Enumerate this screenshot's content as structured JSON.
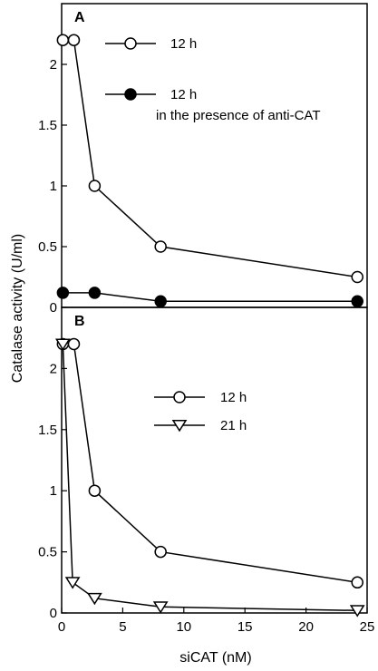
{
  "chart_data": [
    {
      "type": "line",
      "panel_label": "A",
      "xlim": [
        0,
        25
      ],
      "ylim": [
        0,
        2.5
      ],
      "yticks": [
        0,
        0.5,
        1,
        1.5,
        2
      ],
      "ytick_labels": [
        "0",
        "0.5",
        "1",
        "1.5",
        "2"
      ],
      "series": [
        {
          "name": "12 h",
          "marker": "open-circle",
          "x": [
            0.1,
            1.0,
            2.7,
            8.1,
            24.2
          ],
          "y": [
            2.2,
            2.2,
            1.0,
            0.5,
            0.25
          ]
        },
        {
          "name": "12 h",
          "name_line2": "in the presence of anti-CAT",
          "marker": "filled-circle",
          "x": [
            0.1,
            2.7,
            8.1,
            24.2
          ],
          "y": [
            0.12,
            0.12,
            0.05,
            0.05
          ]
        }
      ]
    },
    {
      "type": "line",
      "panel_label": "B",
      "xlim": [
        0,
        25
      ],
      "ylim": [
        0,
        2.5
      ],
      "yticks": [
        0,
        0.5,
        1,
        1.5,
        2
      ],
      "ytick_labels": [
        "0",
        "0.5",
        "1",
        "1.5",
        "2"
      ],
      "xticks": [
        0,
        5,
        10,
        15,
        20,
        25
      ],
      "xtick_labels": [
        "0",
        "5",
        "10",
        "15",
        "20",
        "25"
      ],
      "series": [
        {
          "name": "12 h",
          "marker": "open-circle",
          "x": [
            0.1,
            1.0,
            2.7,
            8.1,
            24.2
          ],
          "y": [
            2.2,
            2.2,
            1.0,
            0.5,
            0.25
          ]
        },
        {
          "name": "21 h",
          "marker": "open-triangle-down",
          "x": [
            0.1,
            0.9,
            2.7,
            8.1,
            24.2
          ],
          "y": [
            2.2,
            0.25,
            0.12,
            0.05,
            0.02
          ]
        }
      ]
    }
  ],
  "labels": {
    "ylabel": "Catalase  activity  (U/ml)",
    "xlabel": "siCAT  (nM)"
  }
}
